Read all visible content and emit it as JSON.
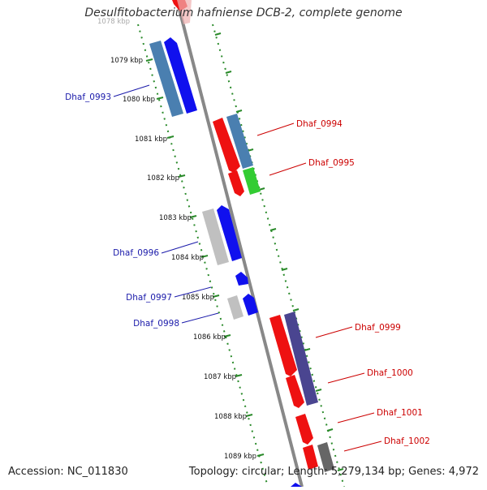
{
  "title": "Desulfitobacterium hafniense DCB-2, complete genome",
  "footer": {
    "accession": "Accession: NC_011830",
    "topology": "Topology: circular; Length: 5,279,134 bp; Genes: 4,972"
  },
  "colors": {
    "blue": "#1010ee",
    "steelblue": "#4a7fb0",
    "red": "#ee1111",
    "green": "#33cc33",
    "gray": "#c0c0c0",
    "darkgray": "#666666",
    "slate": "#4a4590",
    "dotted": "#2a8a2a",
    "backbone": "#888888",
    "label_blue": "#1a1aaa",
    "label_red": "#cc0000"
  },
  "ticks": [
    "1078 kbp",
    "1079 kbp",
    "1080 kbp",
    "1081 kbp",
    "1082 kbp",
    "1083 kbp",
    "1084 kbp",
    "1085 kbp",
    "1086 kbp",
    "1087 kbp",
    "1088 kbp",
    "1089 kbp"
  ],
  "genes_left": [
    {
      "name": "Dhaf_0993",
      "color": "blue",
      "strand": "left"
    },
    {
      "name": "Dhaf_0996",
      "color": "blue",
      "strand": "left"
    },
    {
      "name": "Dhaf_0997",
      "color": "blue",
      "strand": "left"
    },
    {
      "name": "Dhaf_0998",
      "color": "blue",
      "strand": "left"
    }
  ],
  "genes_right": [
    {
      "name": "Dhaf_0994",
      "color": "red",
      "strand": "right"
    },
    {
      "name": "Dhaf_0995",
      "color": "red",
      "strand": "right"
    },
    {
      "name": "Dhaf_0999",
      "color": "red",
      "strand": "right"
    },
    {
      "name": "Dhaf_1000",
      "color": "red",
      "strand": "right"
    },
    {
      "name": "Dhaf_1001",
      "color": "red",
      "strand": "right"
    },
    {
      "name": "Dhaf_1002",
      "color": "red",
      "strand": "right"
    }
  ]
}
